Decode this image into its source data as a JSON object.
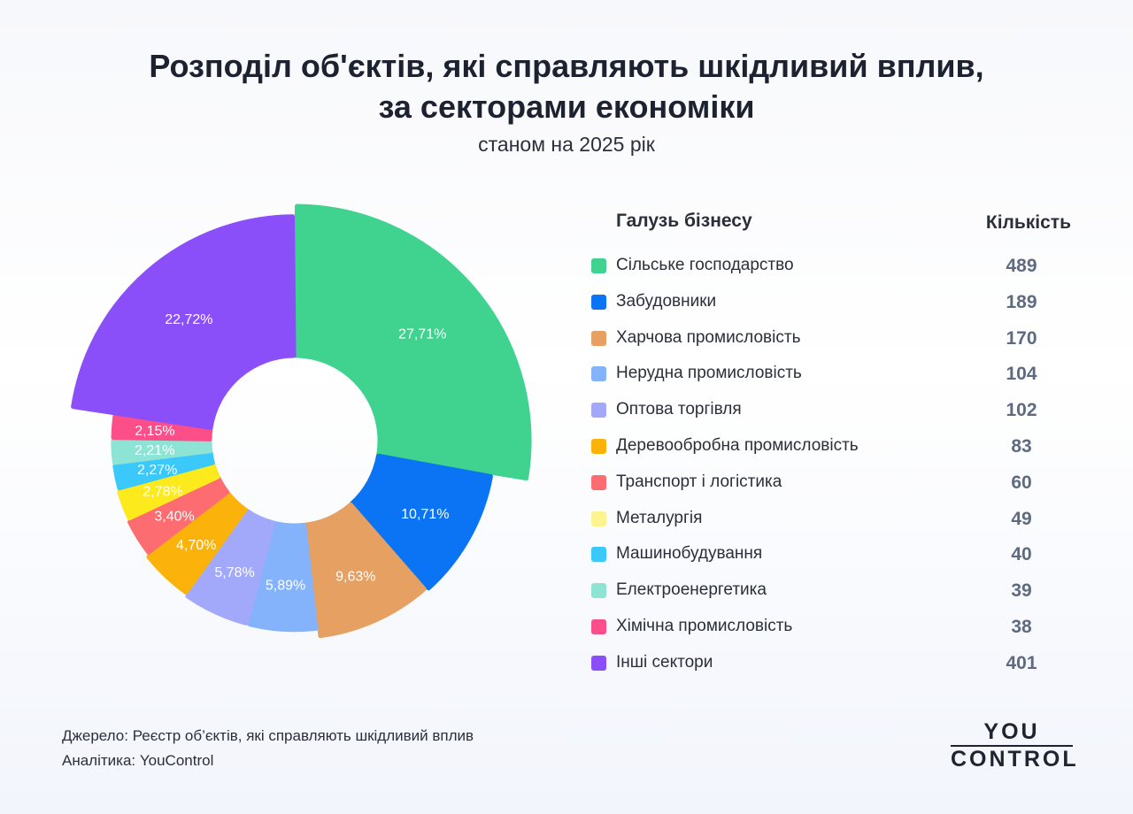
{
  "title_line1": "Розподіл об'єктів, які справляють шкідливий вплив,",
  "title_line2": "за секторами економіки",
  "subtitle": "станом на 2025 рік",
  "legend": {
    "header_category": "Галузь бізнесу",
    "header_count": "Кількість"
  },
  "chart_data": {
    "type": "pie",
    "donut": true,
    "legend_placement": "right",
    "categories": [
      "Сільське господарство",
      "Забудовники",
      "Харчова промисловість",
      "Нерудна промисловість",
      "Оптова торгівля",
      "Деревообробна промисловість",
      "Транспорт і логістика",
      "Металургія",
      "Машинобудування",
      "Електроенергетика",
      "Хімічна промисловість",
      "Інші сектори"
    ],
    "values": [
      489,
      189,
      170,
      104,
      102,
      83,
      60,
      49,
      40,
      39,
      38,
      401
    ],
    "percent_labels": [
      "27,71%",
      "10,71%",
      "9,63%",
      "5,89%",
      "5,78%",
      "4,70%",
      "3,40%",
      "2,78%",
      "2,27%",
      "2,21%",
      "2,15%",
      "22,72%"
    ],
    "colors": [
      "#3fd38f",
      "#0a74f5",
      "#e5a062",
      "#84b3fb",
      "#a3a9fa",
      "#fbb30b",
      "#fc6c71",
      "#fdea1c",
      "#3bc8fb",
      "#8de3d4",
      "#fc4f89",
      "#8b4ffa"
    ],
    "legend_colors": [
      "#3fd38f",
      "#0a74f5",
      "#e5a062",
      "#84b3fb",
      "#a3a9fa",
      "#fbb30b",
      "#fc6c71",
      "#fdf38f",
      "#3bc8fb",
      "#8de3d4",
      "#fc4f89",
      "#8b4ffa"
    ]
  },
  "footer": {
    "source": "Джерело: Реєстр об’єктів, які справляють шкідливий вплив",
    "analytics": "Аналітика: YouControl"
  },
  "logo": {
    "line1": "YOU",
    "line2": "CONTROL"
  }
}
